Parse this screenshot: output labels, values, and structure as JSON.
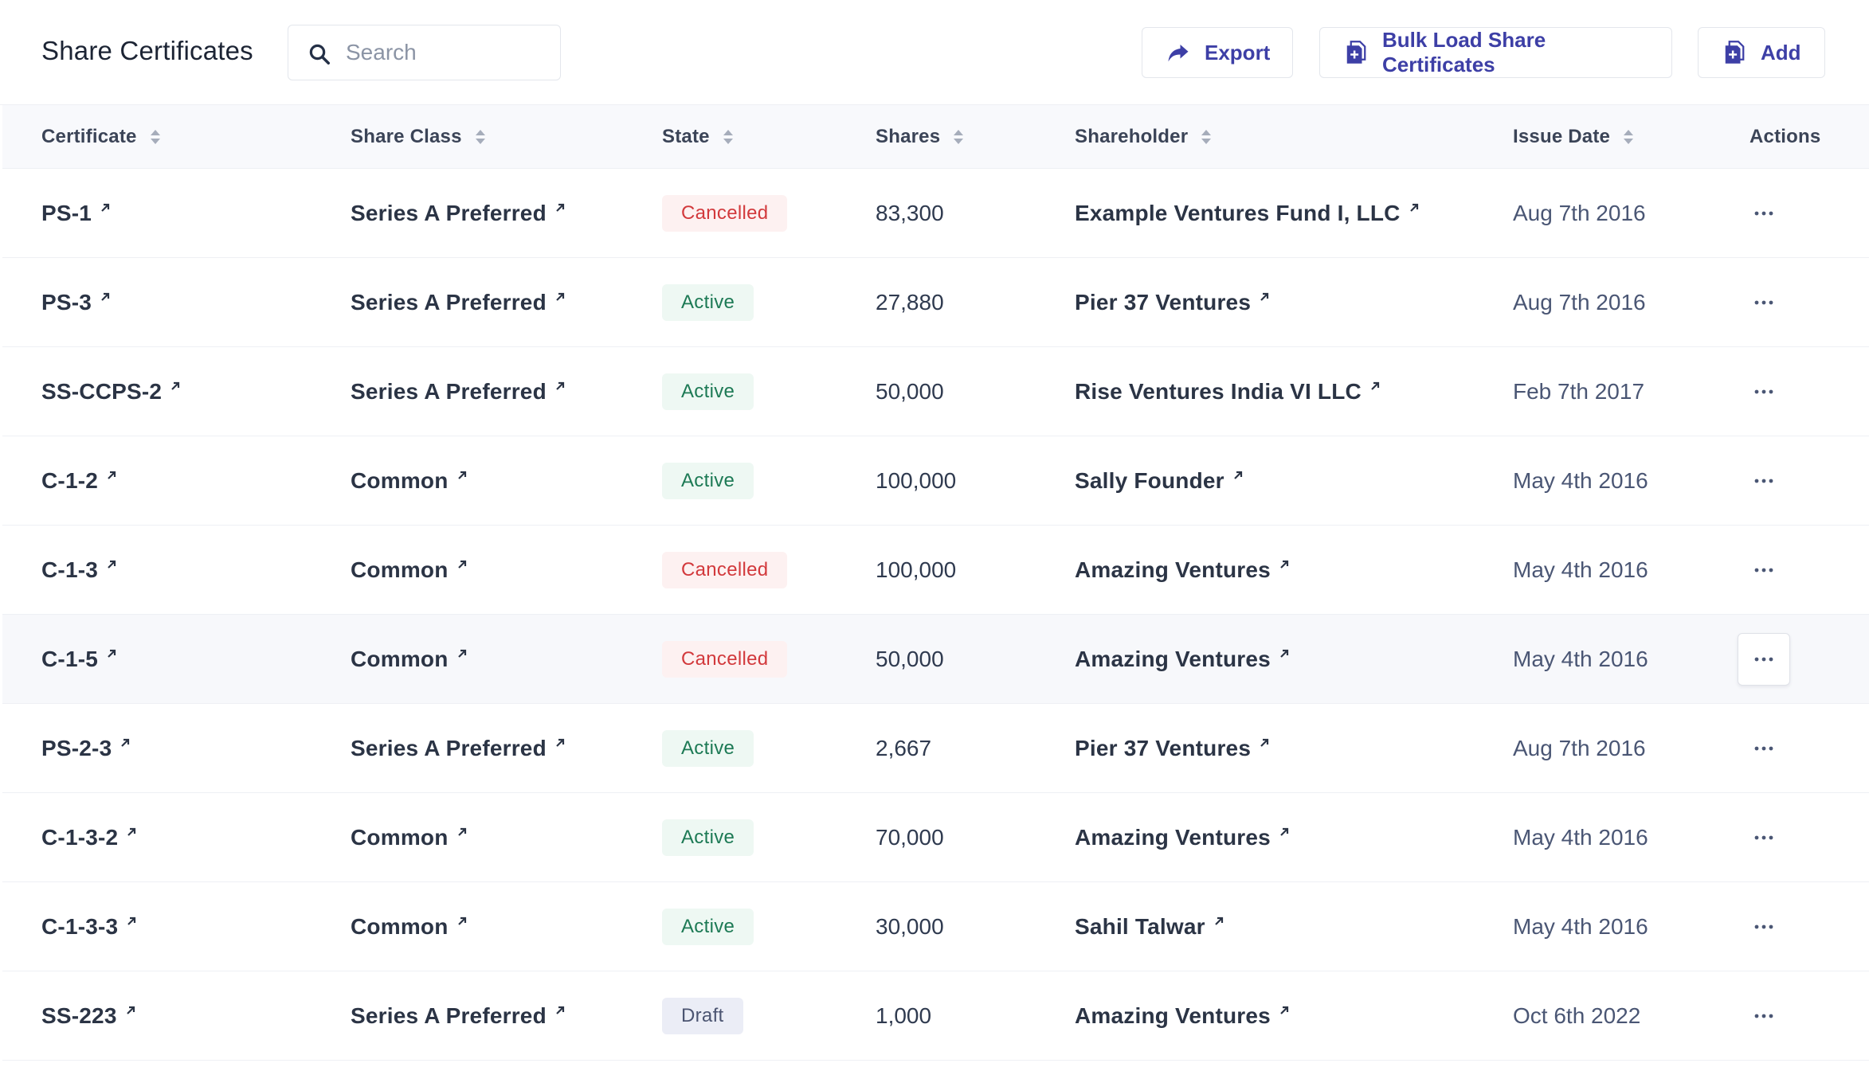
{
  "header": {
    "title": "Share Certificates",
    "search_placeholder": "Search",
    "search_value": "",
    "export_label": "Export",
    "bulk_label": "Bulk Load Share Certificates",
    "add_label": "Add"
  },
  "colors": {
    "accent": "#3d3fa6",
    "cancelled": "#d2393c",
    "active": "#1d7a55",
    "draft": "#4b5471"
  },
  "table": {
    "columns": [
      "Certificate",
      "Share Class",
      "State",
      "Shares",
      "Shareholder",
      "Issue Date",
      "Actions"
    ],
    "rows": [
      {
        "certificate": "PS-1",
        "share_class": "Series A Preferred",
        "state": "Cancelled",
        "shares": "83,300",
        "shareholder": "Example Ventures Fund I, LLC",
        "issue_date": "Aug 7th 2016"
      },
      {
        "certificate": "PS-3",
        "share_class": "Series A Preferred",
        "state": "Active",
        "shares": "27,880",
        "shareholder": "Pier 37 Ventures",
        "issue_date": "Aug 7th 2016"
      },
      {
        "certificate": "SS-CCPS-2",
        "share_class": "Series A Preferred",
        "state": "Active",
        "shares": "50,000",
        "shareholder": "Rise Ventures India VI LLC",
        "issue_date": "Feb 7th 2017"
      },
      {
        "certificate": "C-1-2",
        "share_class": "Common",
        "state": "Active",
        "shares": "100,000",
        "shareholder": "Sally Founder",
        "issue_date": "May 4th 2016"
      },
      {
        "certificate": "C-1-3",
        "share_class": "Common",
        "state": "Cancelled",
        "shares": "100,000",
        "shareholder": "Amazing Ventures",
        "issue_date": "May 4th 2016"
      },
      {
        "certificate": "C-1-5",
        "share_class": "Common",
        "state": "Cancelled",
        "shares": "50,000",
        "shareholder": "Amazing Ventures",
        "issue_date": "May 4th 2016"
      },
      {
        "certificate": "PS-2-3",
        "share_class": "Series A Preferred",
        "state": "Active",
        "shares": "2,667",
        "shareholder": "Pier 37 Ventures",
        "issue_date": "Aug 7th 2016"
      },
      {
        "certificate": "C-1-3-2",
        "share_class": "Common",
        "state": "Active",
        "shares": "70,000",
        "shareholder": "Amazing Ventures",
        "issue_date": "May 4th 2016"
      },
      {
        "certificate": "C-1-3-3",
        "share_class": "Common",
        "state": "Active",
        "shares": "30,000",
        "shareholder": "Sahil Talwar",
        "issue_date": "May 4th 2016"
      },
      {
        "certificate": "SS-223",
        "share_class": "Series A Preferred",
        "state": "Draft",
        "shares": "1,000",
        "shareholder": "Amazing Ventures",
        "issue_date": "Oct 6th 2022"
      }
    ]
  }
}
